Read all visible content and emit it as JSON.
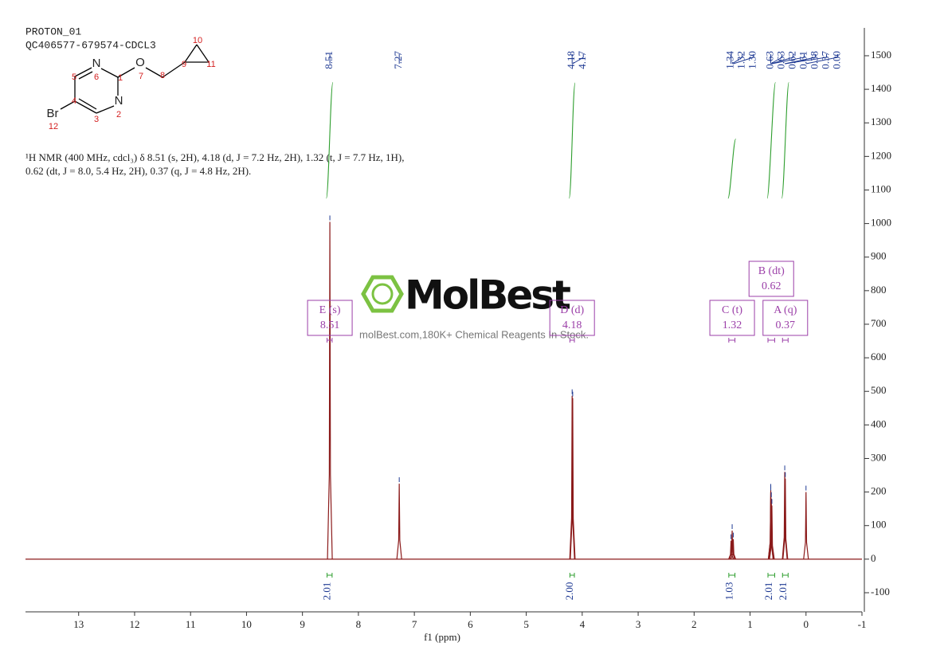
{
  "chart_data": {
    "type": "nmr",
    "title": "PROTON_01",
    "subtitle": "QC406577-679574-CDCL3",
    "description": [
      "¹H NMR (400 MHz, cdcl₃) δ 8.51 (s, 2H), 4.18 (d, J = 7.2 Hz, 2H), 1.32 (t, J = 7.7 Hz, 1H),",
      "0.62 (dt, J = 8.0, 5.4 Hz, 2H), 0.37 (q, J = 4.8 Hz, 2H)."
    ],
    "molecule": {
      "atoms": [
        {
          "symbol": "N",
          "number": "6"
        },
        {
          "number": "1"
        },
        {
          "symbol": "N",
          "number": "2"
        },
        {
          "number": "3"
        },
        {
          "number": "4"
        },
        {
          "number": "5"
        },
        {
          "symbol": "O",
          "number": "7"
        },
        {
          "number": "8"
        },
        {
          "number": "9"
        },
        {
          "number": "10"
        },
        {
          "number": "11"
        },
        {
          "symbol": "Br",
          "number": "12"
        }
      ]
    },
    "x_label": "f1 (ppm)",
    "xlim": [
      13.95,
      -1
    ],
    "xticks": [
      13,
      12,
      11,
      10,
      9,
      8,
      7,
      6,
      5,
      4,
      3,
      2,
      1,
      0,
      -1
    ],
    "ylim": [
      -157,
      1583
    ],
    "yticks": [
      -100,
      0,
      100,
      200,
      300,
      400,
      500,
      600,
      700,
      800,
      900,
      1000,
      1100,
      1200,
      1300,
      1400,
      1500
    ],
    "peaks": {
      "x": [
        8.51,
        7.27,
        4.18,
        4.17,
        1.34,
        1.32,
        1.3,
        0.63,
        0.63,
        0.62,
        0.61,
        0.38,
        0.37,
        0.0
      ],
      "x_labels": [
        "8.51",
        "7.27",
        "4.18",
        "4.17",
        "1.34",
        "1.32",
        "1.30",
        "0.63",
        "0.63",
        "0.62",
        "0.61",
        "0.38",
        "0.37",
        "0.00"
      ],
      "values": [
        1005,
        225,
        487,
        480,
        55,
        85,
        60,
        205,
        200,
        180,
        160,
        260,
        240,
        200
      ],
      "color": "#8b1a1a"
    },
    "multiplets": [
      {
        "name": "E (s)",
        "shift": 8.51,
        "range": [
          8.56,
          8.47
        ],
        "integral": 2.01
      },
      {
        "name": "D (d)",
        "shift": 4.18,
        "range": [
          4.22,
          4.14
        ],
        "integral": 2.0,
        "integral_label": "2.00"
      },
      {
        "name": "C (t)",
        "shift": 1.32,
        "range": [
          1.38,
          1.27
        ],
        "integral": 1.03
      },
      {
        "name": "B (dt)",
        "shift": 0.62,
        "range": [
          0.68,
          0.56
        ],
        "integral": 2.01
      },
      {
        "name": "A (q)",
        "shift": 0.37,
        "range": [
          0.42,
          0.32
        ],
        "integral": 2.01
      }
    ],
    "integral_color": "#2e9e2e",
    "multiplet_color": "#9b3fa8",
    "label_color": "#1f3a93",
    "watermark": {
      "brand": "MolBest",
      "tagline": "molBest.com,180K+ Chemical Reagents In Stock."
    }
  }
}
